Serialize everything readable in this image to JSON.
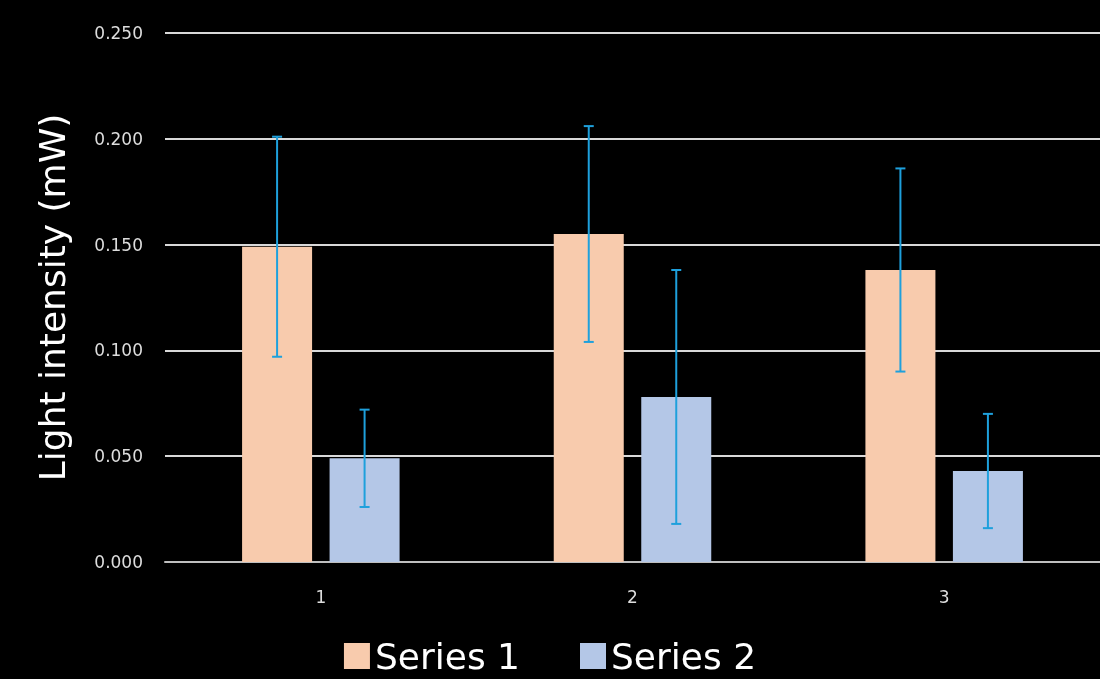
{
  "chart_data": {
    "type": "bar",
    "ylabel": "Light intensity (mW)",
    "categories": [
      "1",
      "2",
      "3"
    ],
    "series": [
      {
        "name": "Series 1",
        "color": "#f8cbad",
        "values": [
          0.149,
          0.155,
          0.138
        ],
        "errors": [
          0.052,
          0.051,
          0.048
        ]
      },
      {
        "name": "Series 2",
        "color": "#b4c7e7",
        "values": [
          0.049,
          0.078,
          0.043
        ],
        "errors": [
          0.023,
          0.06,
          0.027
        ]
      }
    ],
    "ylim": [
      0,
      0.25
    ],
    "yticks": [
      {
        "value": 0,
        "label": "0.000"
      },
      {
        "value": 0.05,
        "label": "0.050"
      },
      {
        "value": 0.1,
        "label": "0.100"
      },
      {
        "value": 0.15,
        "label": "0.150"
      },
      {
        "value": 0.2,
        "label": "0.200"
      },
      {
        "value": 0.25,
        "label": "0.250"
      }
    ],
    "grid": "y",
    "legend": "bottom"
  }
}
